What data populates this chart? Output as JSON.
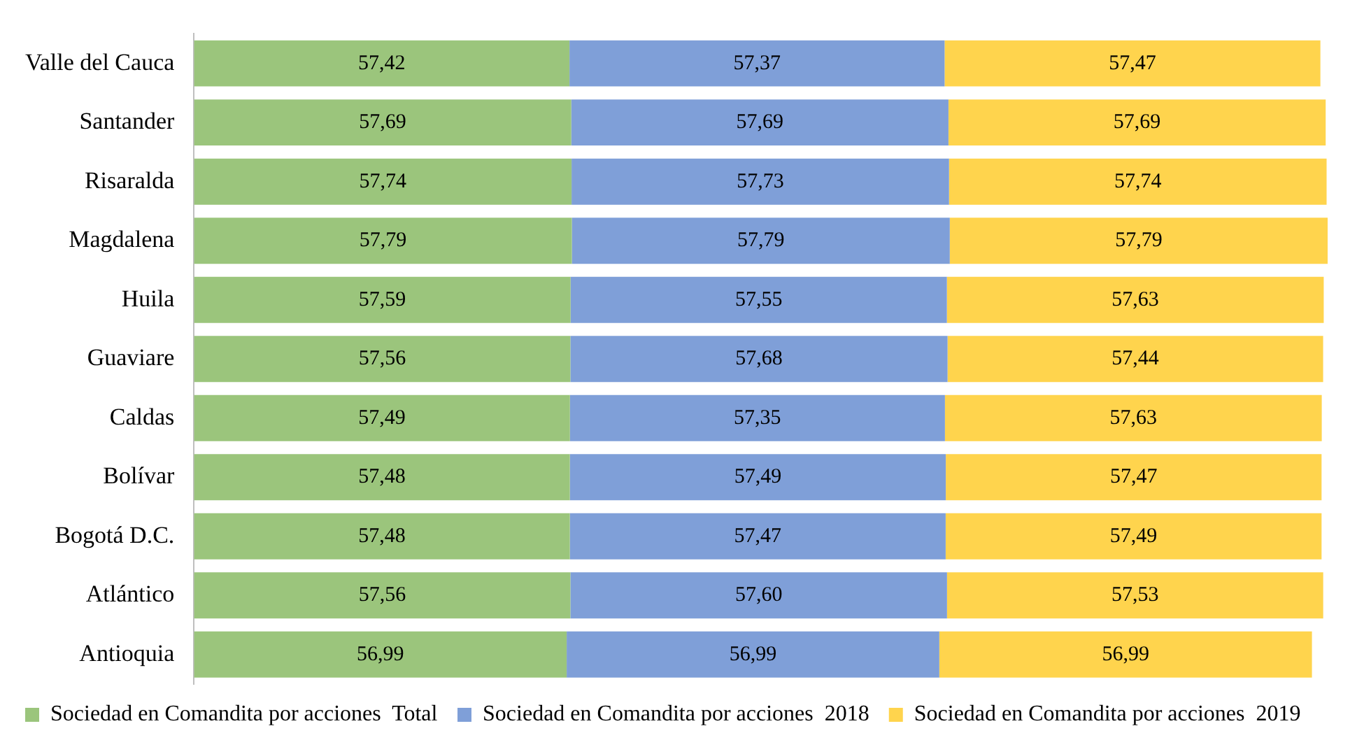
{
  "chart_data": {
    "type": "bar",
    "orientation": "horizontal",
    "stacked": true,
    "grid": false,
    "legend": "bottom",
    "tick_labels": "y",
    "categories": [
      "Valle del Cauca",
      "Santander",
      "Risaralda",
      "Magdalena",
      "Huila",
      "Guaviare",
      "Caldas",
      "Bolívar",
      "Bogotá D.C.",
      "Atlántico",
      "Antioquia"
    ],
    "series": [
      {
        "name": "Sociedad en Comandita por acciones  Total",
        "color": "#9bc57c",
        "values": [
          57.42,
          57.69,
          57.74,
          57.79,
          57.59,
          57.56,
          57.49,
          57.48,
          57.48,
          57.56,
          56.99
        ],
        "value_labels": [
          "57,42",
          "57,69",
          "57,74",
          "57,79",
          "57,59",
          "57,56",
          "57,49",
          "57,48",
          "57,48",
          "57,56",
          "56,99"
        ]
      },
      {
        "name": "Sociedad en Comandita por acciones  2018",
        "color": "#7f9fd8",
        "values": [
          57.37,
          57.69,
          57.73,
          57.79,
          57.55,
          57.68,
          57.35,
          57.49,
          57.47,
          57.6,
          56.99
        ],
        "value_labels": [
          "57,37",
          "57,69",
          "57,73",
          "57,79",
          "57,55",
          "57,68",
          "57,35",
          "57,49",
          "57,47",
          "57,60",
          "56,99"
        ]
      },
      {
        "name": "Sociedad en Comandita por acciones  2019",
        "color": "#ffd44d",
        "values": [
          57.47,
          57.69,
          57.74,
          57.79,
          57.63,
          57.44,
          57.63,
          57.47,
          57.49,
          57.53,
          56.99
        ],
        "value_labels": [
          "57,47",
          "57,69",
          "57,74",
          "57,79",
          "57,63",
          "57,44",
          "57,63",
          "57,47",
          "57,49",
          "57,53",
          "56,99"
        ]
      }
    ]
  }
}
